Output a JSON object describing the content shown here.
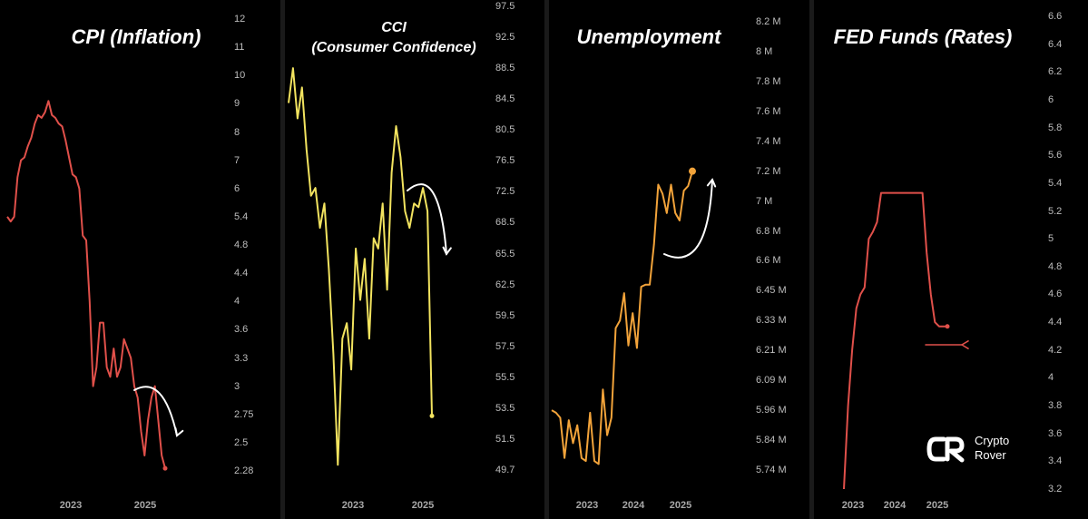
{
  "branding": {
    "line1": "Crypto",
    "line2": "Rover",
    "icon": "crypto-rover-logo-icon"
  },
  "chart_data": [
    {
      "type": "line",
      "title": "CPI (Inflation)",
      "color": "#e0504a",
      "x_ticks": [
        "2023",
        "2025"
      ],
      "y_ticks": [
        "12",
        "11",
        "10",
        "9",
        "8",
        "7",
        "6",
        "5.4",
        "4.8",
        "4.4",
        "4",
        "3.6",
        "3.3",
        "3",
        "2.75",
        "2.5",
        "2.28"
      ],
      "series": [
        {
          "values": [
            5.4,
            5.3,
            5.4,
            6.4,
            7.0,
            7.1,
            7.5,
            7.8,
            8.3,
            8.6,
            8.5,
            8.7,
            9.1,
            8.6,
            8.5,
            8.3,
            8.2,
            7.7,
            7.1,
            6.5,
            6.4,
            6.0,
            5.0,
            4.9,
            4.0,
            3.0,
            3.2,
            3.7,
            3.7,
            3.2,
            3.1,
            3.4,
            3.1,
            3.2,
            3.5,
            3.4,
            3.3,
            3.0,
            2.9,
            2.6,
            2.4,
            2.7,
            2.9,
            3.0,
            2.7,
            2.4,
            2.3
          ]
        }
      ],
      "end_marker": true,
      "annotation": "curved-arrow-down"
    },
    {
      "type": "line",
      "title": "CCI\n(Consumer Confidence)",
      "color": "#f2e35f",
      "x_ticks": [
        "2023",
        "2025"
      ],
      "y_ticks": [
        "97.5",
        "92.5",
        "88.5",
        "84.5",
        "80.5",
        "76.5",
        "72.5",
        "68.5",
        "65.5",
        "62.5",
        "59.5",
        "57.5",
        "55.5",
        "53.5",
        "51.5",
        "49.7"
      ],
      "series": [
        {
          "values": [
            84,
            88.5,
            82,
            86,
            78,
            72,
            73,
            68,
            71,
            64,
            57,
            50,
            58,
            59,
            56,
            66,
            61,
            65,
            58,
            67,
            66,
            71,
            62,
            75,
            81,
            77,
            70,
            68,
            71,
            70.5,
            73,
            70,
            53
          ]
        }
      ],
      "end_marker": true,
      "annotation": "curved-arrow-down"
    },
    {
      "type": "line",
      "title": "Unemployment",
      "color": "#f2a33a",
      "x_ticks": [
        "2023",
        "2024",
        "2025"
      ],
      "y_ticks": [
        "8.2 M",
        "8 M",
        "7.8 M",
        "7.6 M",
        "7.4 M",
        "7.2 M",
        "7 M",
        "6.8 M",
        "6.6 M",
        "6.45 M",
        "6.33 M",
        "6.21 M",
        "6.09 M",
        "5.96 M",
        "5.84 M",
        "5.74 M"
      ],
      "series": [
        {
          "values": [
            5.96,
            5.95,
            5.93,
            5.78,
            5.92,
            5.83,
            5.9,
            5.78,
            5.77,
            5.95,
            5.77,
            5.76,
            6.05,
            5.86,
            5.93,
            6.3,
            6.33,
            6.44,
            6.23,
            6.36,
            6.22,
            6.47,
            6.48,
            6.48,
            6.71,
            7.11,
            7.05,
            6.92,
            7.11,
            6.92,
            6.87,
            7.07,
            7.1,
            7.2
          ]
        }
      ],
      "end_marker": true,
      "annotation": "curved-arrow-up"
    },
    {
      "type": "line",
      "title": "FED Funds (Rates)",
      "color": "#e0504a",
      "x_ticks": [
        "2023",
        "2024",
        "2025"
      ],
      "y_ticks": [
        "6.6",
        "6.4",
        "6.2",
        "6",
        "5.8",
        "5.6",
        "5.4",
        "5.2",
        "5",
        "4.8",
        "4.6",
        "4.4",
        "4.2",
        "4",
        "3.8",
        "3.6",
        "3.4",
        "3.2"
      ],
      "series": [
        {
          "values": [
            3.2,
            3.8,
            4.2,
            4.5,
            4.6,
            4.65,
            5.0,
            5.05,
            5.12,
            5.33,
            5.33,
            5.33,
            5.33,
            5.33,
            5.33,
            5.33,
            5.33,
            5.33,
            5.33,
            5.33,
            4.9,
            4.6,
            4.4,
            4.37,
            4.37,
            4.37
          ]
        }
      ],
      "end_marker": true,
      "annotation": "arrow-right"
    }
  ]
}
